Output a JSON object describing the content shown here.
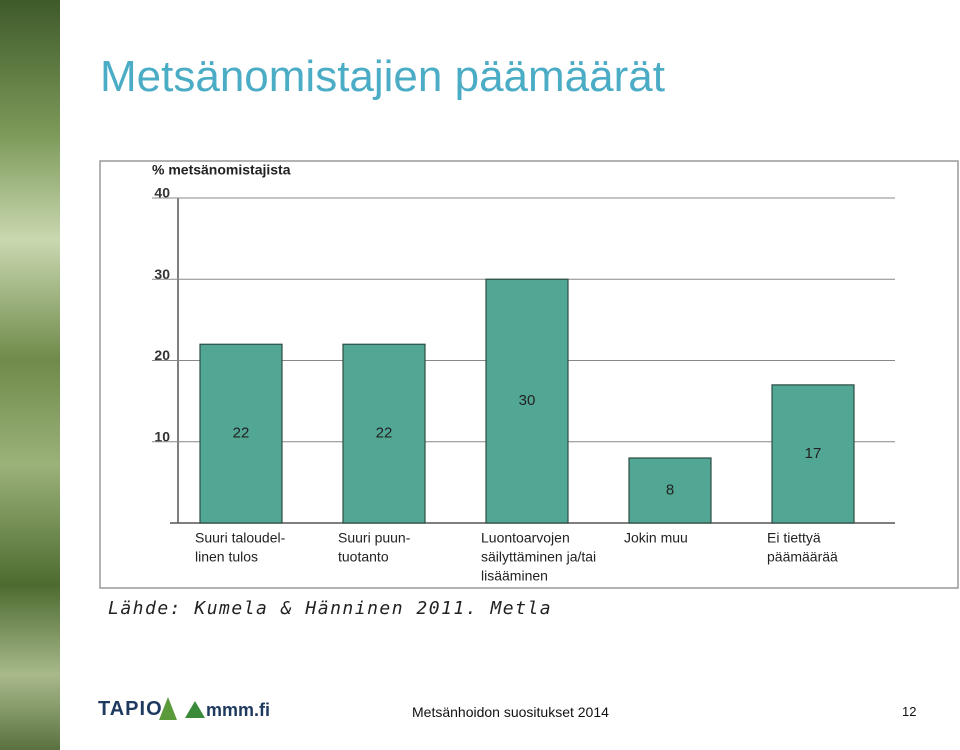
{
  "title": "Metsänomistajien päämäärät",
  "chart_data": {
    "type": "bar",
    "y_label": "% metsänomistajista",
    "categories": [
      [
        "Suuri taloudel-",
        "linen tulos"
      ],
      [
        "Suuri puun-",
        "tuotanto"
      ],
      [
        "Luontoarvojen",
        "säilyttäminen ja/tai",
        "lisääminen"
      ],
      [
        "Jokin muu"
      ],
      [
        "Ei tiettyä",
        "päämäärää"
      ]
    ],
    "values": [
      22,
      22,
      30,
      8,
      17
    ],
    "color": "#52a694",
    "ylim": [
      0,
      40
    ],
    "yticks": [
      10,
      20,
      30,
      40
    ],
    "grid": true
  },
  "source": "Lähde: Kumela & Hänninen 2011. Metla",
  "footer": {
    "logos": [
      "TAPIO",
      "mmm.fi"
    ],
    "text": "Metsänhoidon suositukset 2014",
    "page": "12"
  }
}
